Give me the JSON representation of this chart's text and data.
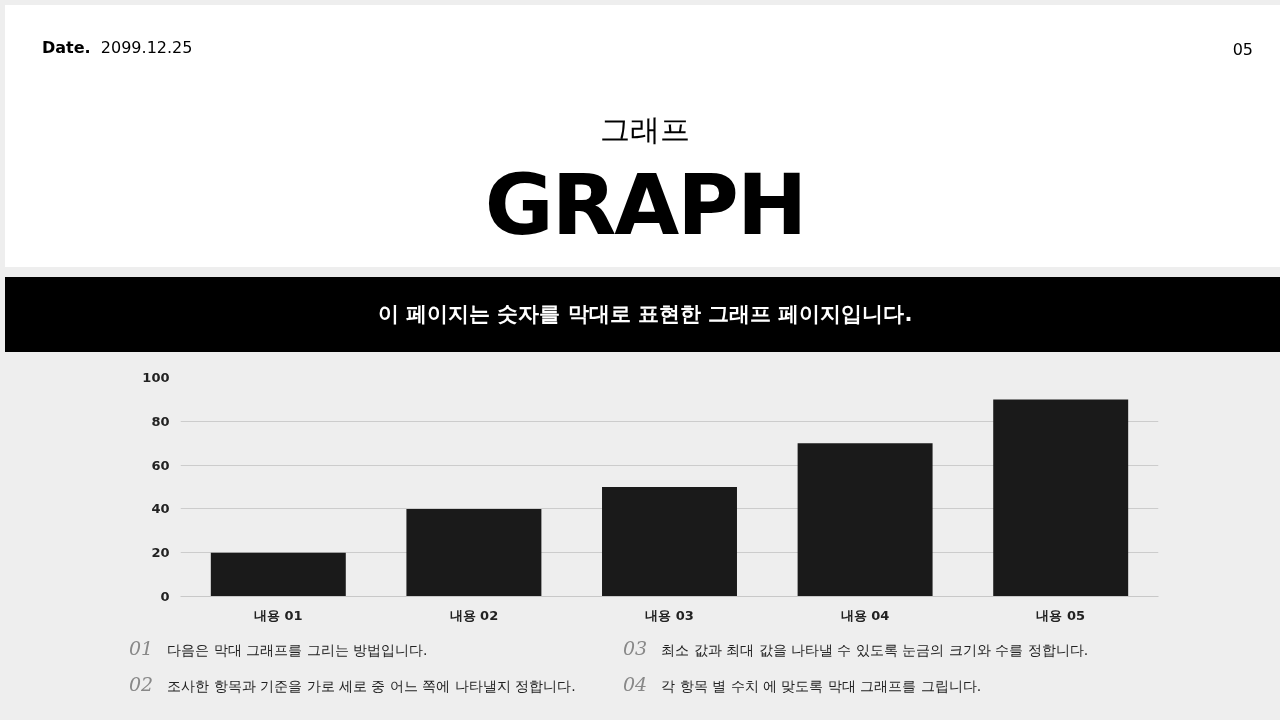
{
  "chart_data": {
    "type": "bar",
    "title": "GRAPH",
    "subtitle": "그래프",
    "annotations": [
      "Date. 2099.12.25",
      "05",
      "이 페이지는 숫자를 막대로 표현한 그래프 페이지입니다.",
      "01 다음은 막대 그래프를 그리는 방법입니다.",
      "02 조사한 항목과 기준을 가로 세로 중 어느 쪽에 나타낼지 정합니다.",
      "03 최소 값과 최대 값을 나타낼 수 있도록 눈금의 크기와 수를 정합니다.",
      "04 각 항목 별 수치 에 맞도록 막대 그래프를 그립니다."
    ],
    "categories": [
      "내용 01",
      "내용 02",
      "내용 03",
      "내용 04",
      "내용 05"
    ],
    "values": [
      20,
      40,
      50,
      70,
      90
    ],
    "color": "#1a1a1a",
    "ylim": [
      0,
      100
    ],
    "yticks": [
      0,
      20,
      40,
      60,
      80,
      100
    ],
    "grid": "y"
  }
}
